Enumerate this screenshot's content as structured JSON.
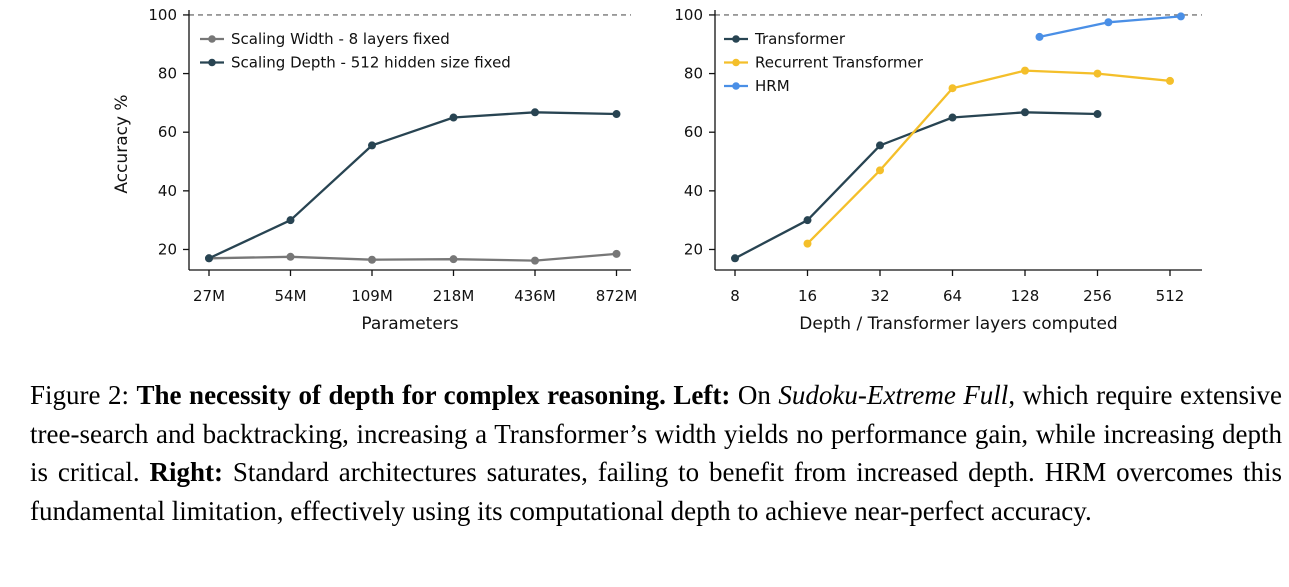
{
  "chart_data": [
    {
      "type": "line",
      "xlabel": "Parameters",
      "ylabel": "Accuracy %",
      "categories": [
        "27M",
        "54M",
        "109M",
        "218M",
        "436M",
        "872M"
      ],
      "yticks": [
        20,
        40,
        60,
        80,
        100
      ],
      "ylim": [
        13,
        101
      ],
      "reference_line": 100,
      "legend_position": "top-left",
      "series": [
        {
          "name": "Scaling Width - 8 layers fixed",
          "color": "#777777",
          "points": [
            [
              0,
              17
            ],
            [
              1,
              17.5
            ],
            [
              2,
              16.5
            ],
            [
              3,
              16.7
            ],
            [
              4,
              16.2
            ],
            [
              5,
              18.5
            ]
          ]
        },
        {
          "name": "Scaling Depth - 512 hidden size fixed",
          "color": "#284452",
          "points": [
            [
              0,
              17
            ],
            [
              1,
              30
            ],
            [
              2,
              55.5
            ],
            [
              3,
              65
            ],
            [
              4,
              66.8
            ],
            [
              5,
              66.2
            ]
          ]
        }
      ]
    },
    {
      "type": "line",
      "xlabel": "Depth / Transformer layers computed",
      "ylabel": "",
      "categories": [
        "8",
        "16",
        "32",
        "64",
        "128",
        "256",
        "512"
      ],
      "yticks": [
        20,
        40,
        60,
        80,
        100
      ],
      "ylim": [
        13,
        101
      ],
      "reference_line": 100,
      "legend_position": "top-left",
      "series": [
        {
          "name": "Transformer",
          "color": "#284452",
          "points": [
            [
              0,
              17
            ],
            [
              1,
              30
            ],
            [
              2,
              55.5
            ],
            [
              3,
              65
            ],
            [
              4,
              66.8
            ],
            [
              5,
              66.2
            ]
          ]
        },
        {
          "name": "Recurrent Transformer",
          "color": "#f4bf2a",
          "points": [
            [
              1,
              22
            ],
            [
              2,
              47
            ],
            [
              3,
              75
            ],
            [
              4,
              81
            ],
            [
              5,
              80
            ],
            [
              6,
              77.5
            ]
          ]
        },
        {
          "name": "HRM",
          "color": "#4a8fe6",
          "points": [
            [
              4.2,
              92.5
            ],
            [
              5.15,
              97.5
            ],
            [
              6.15,
              99.5
            ]
          ]
        }
      ]
    }
  ],
  "caption": {
    "prefix": "Figure 2: ",
    "title": "The necessity of depth for complex reasoning.",
    "left_label": "Left:",
    "text1": " On ",
    "dataset": "Sudoku-Extreme Full",
    "text2": ", which require extensive tree-search and backtracking, increasing a Transformer’s width yields no performance gain, while increasing depth is critical. ",
    "right_label": "Right:",
    "text3": " Standard architectures saturates, failing to benefit from increased depth. HRM overcomes this fundamental limitation, effectively using its computational depth to achieve near-perfect accuracy."
  }
}
